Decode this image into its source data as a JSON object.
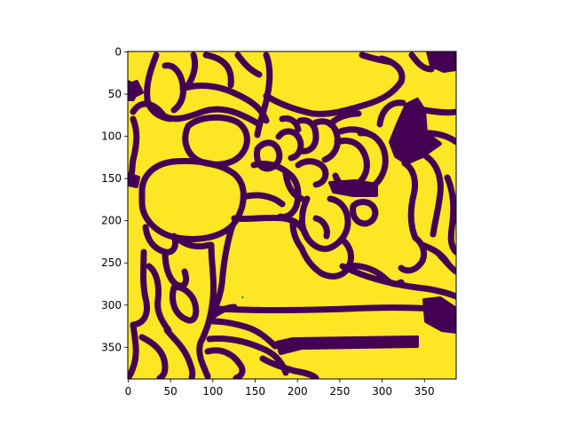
{
  "figure": {
    "type": "image",
    "colormap": "viridis",
    "colors": {
      "foreground": "#fde725",
      "boundary": "#440154",
      "speckle": "#21918c",
      "axis": "#000000",
      "background": "#ffffff"
    }
  },
  "axes": {
    "x_ticks": [
      0,
      50,
      100,
      150,
      200,
      250,
      300,
      350
    ],
    "y_ticks": [
      0,
      50,
      100,
      150,
      200,
      250,
      300,
      350
    ],
    "xlim": [
      -0.5,
      387.5
    ],
    "ylim": [
      387.5,
      -0.5
    ],
    "origin": "upper"
  }
}
